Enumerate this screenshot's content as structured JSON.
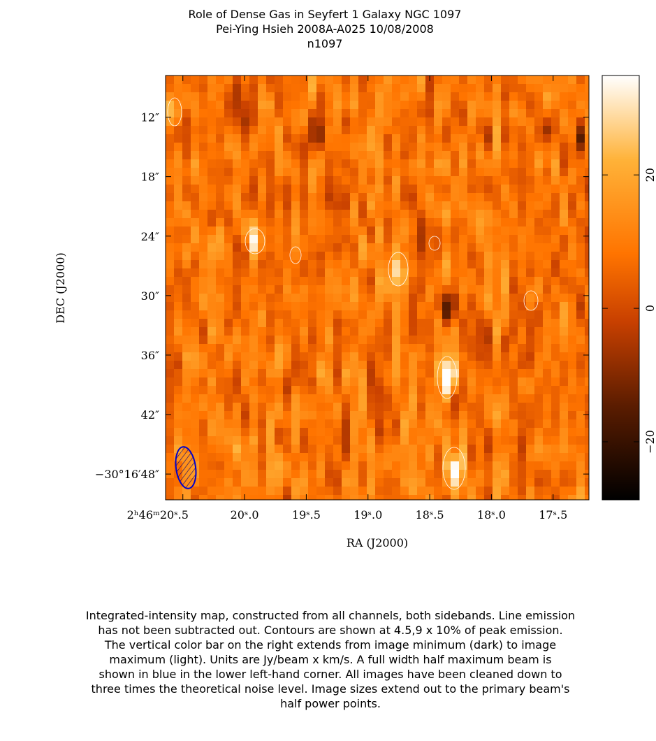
{
  "chart_data": {
    "type": "heatmap",
    "title": [
      "Role of Dense Gas in Seyfert 1 Galaxy NGC 1097",
      "Pei-Ying Hsieh   2008A-A025   10/08/2008",
      "n1097"
    ],
    "xlabel": "RA (J2000)",
    "ylabel": "DEC (J2000)",
    "xlim": [
      20.64,
      17.21
    ],
    "xticks": [
      {
        "value": 20.5,
        "label": "2ʰ46ᵐ20ˢ.5"
      },
      {
        "value": 20.0,
        "label": "20ˢ.0"
      },
      {
        "value": 19.5,
        "label": "19ˢ.5"
      },
      {
        "value": 19.0,
        "label": "19ˢ.0"
      },
      {
        "value": 18.5,
        "label": "18ˢ.5"
      },
      {
        "value": 18.0,
        "label": "18ˢ.0"
      },
      {
        "value": 17.5,
        "label": "17ˢ.5"
      }
    ],
    "ylim": [
      50.6,
      7.8
    ],
    "yticks": [
      {
        "value": 12,
        "label": "12″"
      },
      {
        "value": 18,
        "label": "18″"
      },
      {
        "value": 24,
        "label": "24″"
      },
      {
        "value": 30,
        "label": "30″"
      },
      {
        "value": 36,
        "label": "36″"
      },
      {
        "value": 42,
        "label": "42″"
      },
      {
        "value": 48,
        "label": "−30°16′48″"
      }
    ],
    "colorbar_lim": [
      -28.7,
      34.9
    ],
    "colorbar_ticks": [
      {
        "value": 20,
        "label": "20"
      },
      {
        "value": 0,
        "label": "0"
      },
      {
        "value": -20,
        "label": "−20"
      }
    ],
    "caption": [
      "Integrated-intensity map, constructed from all channels, both sidebands.  Line emission",
      "has not been subtracted out.  Contours are shown at 4.5,9 x 10% of peak emission.",
      "The vertical color bar on the right extends from image minimum (dark) to image",
      "maximum (light).  Units are Jy/beam x km/s.  A full width half maximum beam is",
      "shown in blue in the lower left-hand corner.  All images have been cleaned down to",
      "three times the theoretical noise level.  Image sizes extend out to the primary beam's",
      "half power points."
    ]
  }
}
